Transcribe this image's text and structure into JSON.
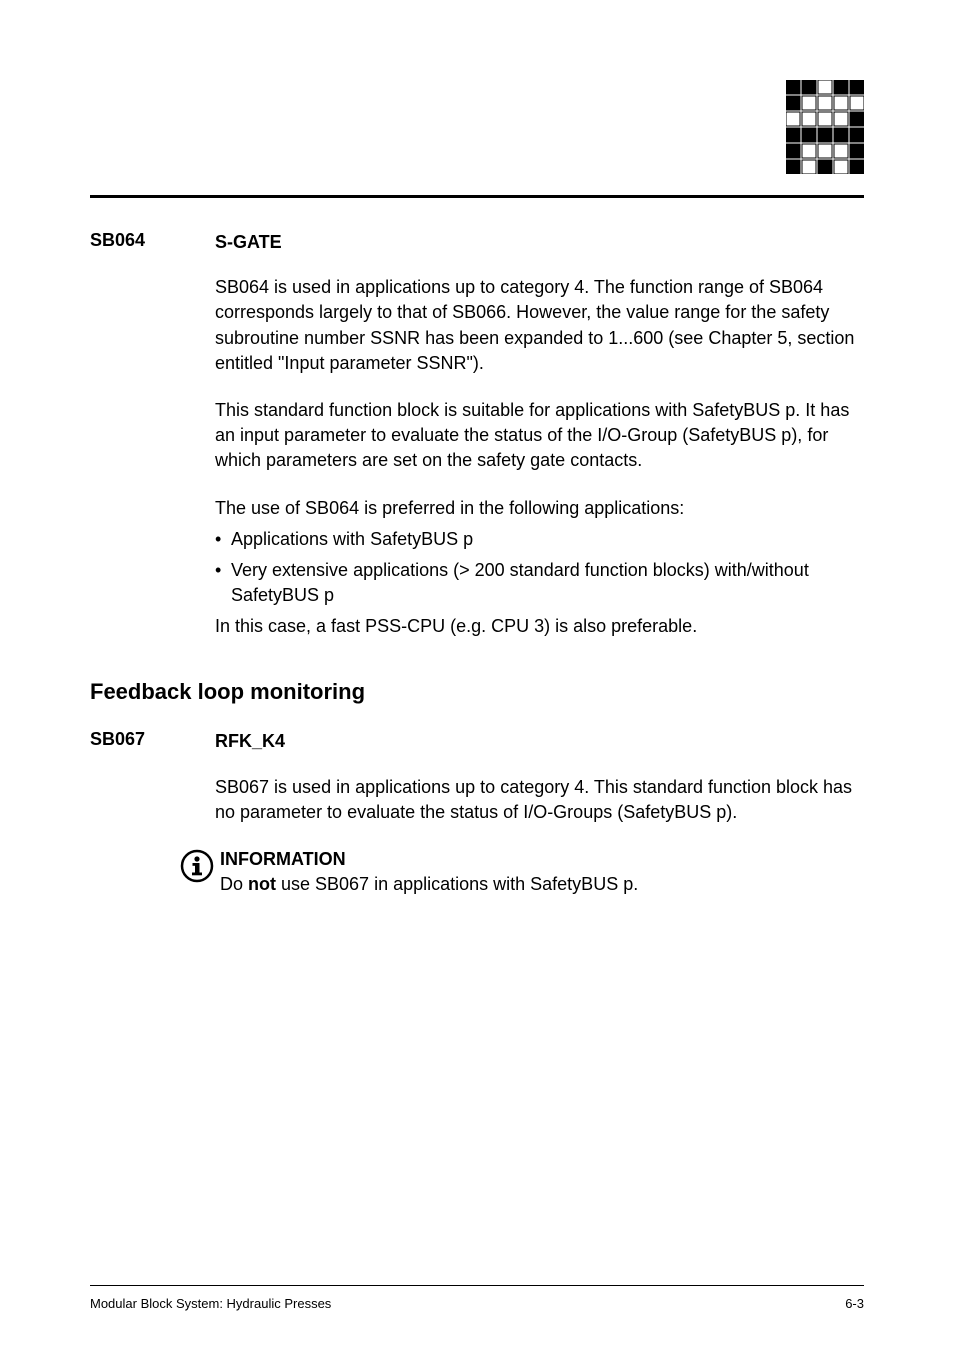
{
  "logo": {
    "rows": 6,
    "cols": 5,
    "cell": 14,
    "gap": 2,
    "filled_color": "#000000",
    "empty_color": "#ffffff",
    "stroke": "#000000",
    "pattern": [
      [
        1,
        1,
        0,
        1,
        1
      ],
      [
        1,
        0,
        0,
        0,
        0
      ],
      [
        0,
        0,
        0,
        0,
        1
      ],
      [
        1,
        1,
        1,
        1,
        1
      ],
      [
        1,
        0,
        0,
        0,
        1
      ],
      [
        1,
        0,
        1,
        0,
        1
      ]
    ]
  },
  "sb064": {
    "code": "SB064",
    "name": "S-GATE",
    "p1": "SB064 is used in applications up to category 4. The function range of SB064 corresponds largely to that of SB066. However, the value range for the safety subroutine number SSNR has been expanded to 1...600 (see Chapter 5, section entitled \"Input parameter SSNR\").",
    "p2": "This standard function block is suitable for applications with SafetyBUS p. It has an input parameter to evaluate the status of the I/O-Group (SafetyBUS p), for which parameters are set on the safety gate contacts.",
    "p3": "The use of SB064 is preferred in the following applications:",
    "bullets": [
      "Applications with SafetyBUS p",
      "Very extensive applications (> 200 standard function blocks) with/without SafetyBUS p"
    ],
    "p4": "In this case, a fast PSS-CPU (e.g. CPU 3) is also preferable."
  },
  "section2": {
    "heading": "Feedback loop monitoring"
  },
  "sb067": {
    "code": "SB067",
    "name": "RFK_K4",
    "p1": "SB067 is used in applications up to category 4. This standard function block has no parameter to evaluate the status of I/O-Groups (SafetyBUS p)."
  },
  "info": {
    "heading": "INFORMATION",
    "text_pre": "Do ",
    "text_bold": "not",
    "text_post": " use SB067 in applications with SafetyBUS p."
  },
  "footer": {
    "left": "Modular Block System: Hydraulic Presses",
    "right": "6-3"
  }
}
